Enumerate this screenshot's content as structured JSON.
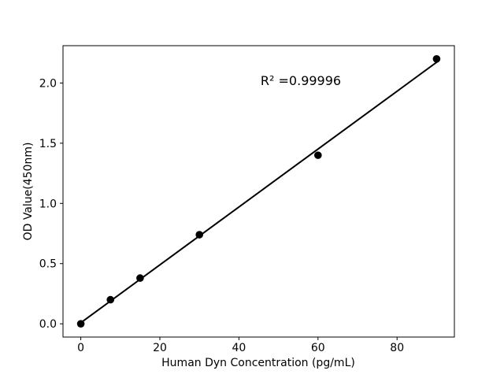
{
  "chart_data": {
    "type": "scatter",
    "title": "",
    "xlabel": "Human Dyn Concentration (pg/mL)",
    "ylabel": "OD Value(450nm)",
    "annotation": "R² =0.99996",
    "x": [
      0,
      7.5,
      15,
      30,
      60,
      90
    ],
    "y": [
      0.0,
      0.2,
      0.38,
      0.74,
      1.4,
      2.2
    ],
    "fit_line": true,
    "xlim": [
      -4.5,
      94.5
    ],
    "ylim": [
      -0.11,
      2.31
    ],
    "xtick_values": [
      0,
      20,
      40,
      60,
      80
    ],
    "xtick_labels": [
      "0",
      "20",
      "40",
      "60",
      "80"
    ],
    "ytick_values": [
      0.0,
      0.5,
      1.0,
      1.5,
      2.0
    ],
    "ytick_labels": [
      "0.0",
      "0.5",
      "1.0",
      "1.5",
      "2.0"
    ],
    "grid": false,
    "legend_position": "none",
    "marker_color": "#000000",
    "line_color": "#000000",
    "frame_color": "#000000",
    "background_color": "#ffffff"
  }
}
